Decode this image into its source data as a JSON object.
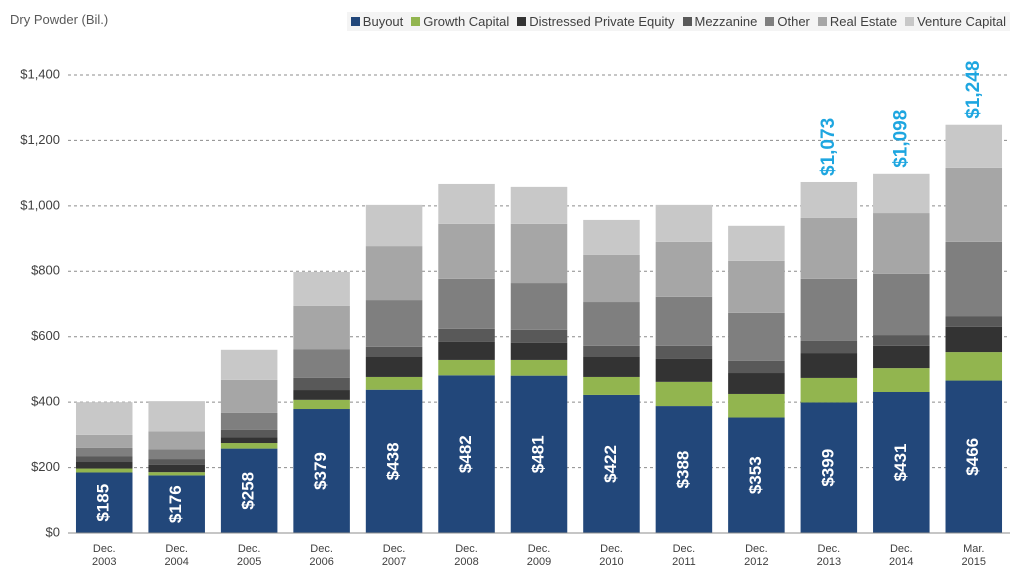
{
  "chart_data": {
    "type": "stacked_bar",
    "ylabel": "Dry Powder (Bil.)",
    "categories": [
      "Dec. 2003",
      "Dec. 2004",
      "Dec. 2005",
      "Dec. 2006",
      "Dec. 2007",
      "Dec. 2008",
      "Dec. 2009",
      "Dec. 2010",
      "Dec. 2011",
      "Dec. 2012",
      "Dec. 2013",
      "Dec. 2014",
      "Mar. 2015"
    ],
    "series": [
      {
        "name": "Buyout",
        "color": "#22477a",
        "values": [
          185,
          176,
          258,
          379,
          438,
          482,
          481,
          422,
          388,
          353,
          399,
          431,
          466
        ],
        "value_labels": [
          "$185",
          "$176",
          "$258",
          "$379",
          "$438",
          "$482",
          "$481",
          "$422",
          "$388",
          "$353",
          "$399",
          "$431",
          "$466"
        ]
      },
      {
        "name": "Growth Capital",
        "color": "#92b54f",
        "values": [
          12,
          10,
          17,
          28,
          39,
          47,
          48,
          55,
          74,
          72,
          75,
          73,
          87
        ]
      },
      {
        "name": "Distressed Private Equity",
        "color": "#333333",
        "values": [
          20,
          22,
          18,
          30,
          61,
          55,
          52,
          61,
          70,
          64,
          76,
          68,
          77
        ]
      },
      {
        "name": "Mezzanine",
        "color": "#595959",
        "values": [
          18,
          18,
          22,
          37,
          31,
          40,
          40,
          34,
          40,
          37,
          37,
          33,
          33
        ]
      },
      {
        "name": "Other",
        "color": "#7f7f7f",
        "values": [
          25,
          30,
          52,
          88,
          143,
          153,
          143,
          134,
          150,
          147,
          190,
          187,
          227
        ]
      },
      {
        "name": "Real Estate",
        "color": "#a6a6a6",
        "values": [
          40,
          55,
          101,
          132,
          165,
          168,
          181,
          144,
          168,
          159,
          186,
          186,
          226
        ]
      },
      {
        "name": "Venture Capital",
        "color": "#c8c8c8",
        "values": [
          100,
          92,
          92,
          104,
          126,
          122,
          113,
          107,
          113,
          107,
          110,
          120,
          132
        ]
      }
    ],
    "annotations": [
      {
        "category": "Dec. 2013",
        "value": 1073,
        "label": "$1,073"
      },
      {
        "category": "Dec. 2014",
        "value": 1098,
        "label": "$1,098"
      },
      {
        "category": "Mar. 2015",
        "value": 1248,
        "label": "$1,248"
      }
    ],
    "annotation_color": "#1ea6e0",
    "ylim": [
      0,
      1400
    ],
    "yticks": [
      {
        "value": 0,
        "label": "$0"
      },
      {
        "value": 200,
        "label": "$200"
      },
      {
        "value": 400,
        "label": "$400"
      },
      {
        "value": 600,
        "label": "$600"
      },
      {
        "value": 800,
        "label": "$800"
      },
      {
        "value": 1000,
        "label": "$1,000"
      },
      {
        "value": 1200,
        "label": "$1,200"
      },
      {
        "value": 1400,
        "label": "$1,400"
      }
    ],
    "grid": true,
    "legend": "top-right"
  }
}
